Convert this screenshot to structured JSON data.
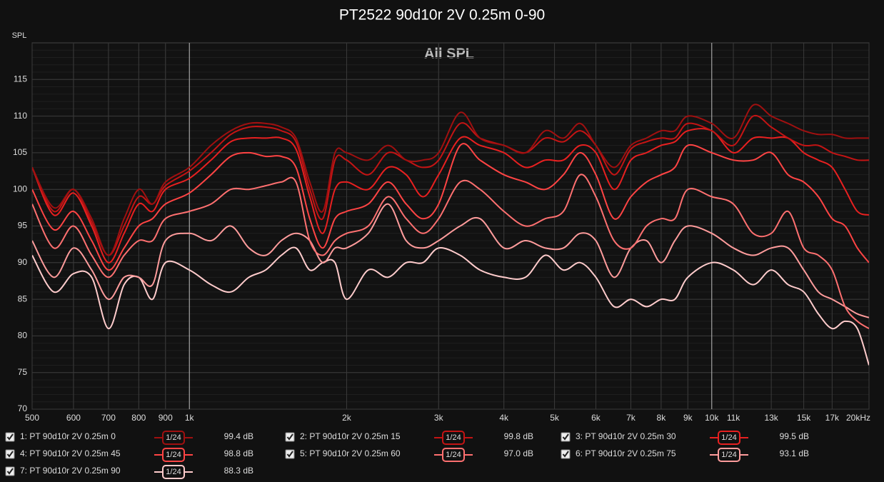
{
  "chart_data": {
    "type": "line",
    "title": "PT2522 90d10r 2V 0.25m 0-90",
    "subtitle": "All SPL",
    "y_label": "SPL",
    "log_x": true,
    "grid": true,
    "xlim": [
      500,
      20000
    ],
    "ylim": [
      70,
      120
    ],
    "xticks": [
      500,
      600,
      700,
      800,
      900,
      {
        "value": 1000,
        "label": "1k"
      },
      {
        "value": 2000,
        "label": "2k"
      },
      {
        "value": 3000,
        "label": "3k"
      },
      {
        "value": 4000,
        "label": "4k"
      },
      {
        "value": 5000,
        "label": "5k"
      },
      {
        "value": 6000,
        "label": "6k"
      },
      {
        "value": 7000,
        "label": "7k"
      },
      {
        "value": 8000,
        "label": "8k"
      },
      {
        "value": 9000,
        "label": "9k"
      },
      {
        "value": 10000,
        "label": "10k"
      },
      {
        "value": 11000,
        "label": "11k"
      },
      {
        "value": 13000,
        "label": "13k"
      },
      {
        "value": 15000,
        "label": "15k"
      },
      {
        "value": 17000,
        "label": "17k"
      },
      {
        "value": 20000,
        "label": "20kHz"
      }
    ],
    "yticks": [
      70,
      75,
      80,
      85,
      90,
      95,
      100,
      105,
      110,
      115
    ],
    "x": [
      500,
      550,
      600,
      650,
      700,
      750,
      800,
      850,
      900,
      1000,
      1100,
      1200,
      1300,
      1400,
      1500,
      1600,
      1700,
      1800,
      1900,
      2000,
      2200,
      2400,
      2600,
      2800,
      3000,
      3300,
      3600,
      4000,
      4400,
      4800,
      5200,
      5600,
      6000,
      6500,
      7000,
      7500,
      8000,
      8500,
      9000,
      10000,
      11000,
      12000,
      13000,
      14000,
      15000,
      16000,
      17000,
      18000,
      19000,
      20000
    ],
    "series": [
      {
        "name": "1: PT 90d10r 2V 0.25m 0",
        "color": "#a01010",
        "smoothing": "1/24",
        "level": "99.4 dB",
        "values": [
          103,
          97.5,
          100,
          96,
          91,
          96,
          100,
          98,
          101,
          103,
          106,
          108,
          109,
          109,
          108.5,
          107,
          101,
          97,
          105,
          105,
          104,
          106,
          104,
          104,
          105,
          110.5,
          107,
          106,
          105,
          108,
          107,
          109,
          106,
          103,
          106,
          107,
          108,
          108,
          110,
          109,
          107,
          111.5,
          110,
          109,
          108,
          107.5,
          107.5,
          107,
          107,
          107
        ]
      },
      {
        "name": "2: PT 90d10r 2V 0.25m 15",
        "color": "#c41414",
        "smoothing": "1/24",
        "level": "99.8 dB",
        "values": [
          103,
          97,
          100,
          95.5,
          91,
          95,
          99,
          98,
          100.5,
          102.5,
          105,
          107.5,
          108.5,
          108.5,
          108,
          106.5,
          100,
          96,
          104,
          104,
          102,
          105,
          104,
          103,
          104,
          109,
          107,
          106,
          105,
          107,
          106.5,
          108,
          106,
          102,
          105.5,
          106.5,
          107,
          107,
          109,
          108,
          106,
          110,
          108.5,
          107,
          106,
          106,
          105,
          104.5,
          104,
          104
        ]
      },
      {
        "name": "3: PT 90d10r 2V 0.25m 30",
        "color": "#e82020",
        "smoothing": "1/24",
        "level": "99.5 dB",
        "values": [
          103,
          96.5,
          99.5,
          95,
          90,
          94,
          98,
          97,
          100,
          101.5,
          104,
          106.5,
          107,
          107,
          107,
          105.5,
          99,
          94,
          100,
          101,
          100,
          103,
          102,
          99,
          102,
          107,
          106,
          105,
          103,
          104,
          104,
          106,
          105,
          100,
          104,
          105,
          106,
          106.5,
          108,
          108,
          105,
          107,
          107,
          107,
          105,
          104,
          103,
          100,
          97,
          96.5
        ]
      },
      {
        "name": "4: PT 90d10r 2V 0.25m 45",
        "color": "#ff4444",
        "smoothing": "1/24",
        "level": "98.8 dB",
        "values": [
          100,
          94.5,
          97,
          93,
          89,
          92,
          95,
          96,
          98,
          99.5,
          102,
          104.5,
          105,
          104.5,
          104.5,
          103,
          96,
          92,
          96,
          97,
          98,
          101,
          98,
          96,
          98,
          106,
          104,
          102,
          101,
          100,
          102,
          105,
          102,
          96,
          99,
          101,
          102,
          103,
          106,
          105,
          104,
          104,
          105,
          102,
          101,
          99,
          96,
          95,
          92,
          90
        ]
      },
      {
        "name": "5: PT 90d10r 2V 0.25m 60",
        "color": "#ff7070",
        "smoothing": "1/24",
        "level": "97.0 dB",
        "values": [
          98,
          92,
          95,
          91,
          88,
          91,
          93,
          93,
          96,
          97,
          98,
          100,
          100,
          100.5,
          101,
          101,
          93,
          91,
          93,
          94,
          95,
          99,
          96,
          94,
          96,
          101,
          100,
          97,
          95,
          96,
          97,
          102,
          99,
          93,
          92,
          95,
          96,
          96,
          100,
          99,
          98,
          94,
          94,
          97,
          92,
          91,
          89,
          84,
          82,
          81
        ]
      },
      {
        "name": "6: PT 90d10r 2V 0.25m 75",
        "color": "#ff9c9c",
        "smoothing": "1/24",
        "level": "93.1 dB",
        "values": [
          93,
          88,
          92,
          89,
          85,
          88,
          88,
          87,
          93,
          94,
          93,
          95,
          92,
          91,
          93,
          94,
          93,
          90,
          92,
          92,
          94,
          98,
          93,
          92,
          93,
          95,
          96,
          92,
          93,
          92,
          92,
          94,
          93,
          88,
          92,
          93,
          90,
          93,
          95,
          94,
          92,
          91,
          92,
          92,
          89,
          86,
          85,
          84,
          83,
          82.5
        ]
      },
      {
        "name": "7: PT 90d10r 2V 0.25m 90",
        "color": "#ffcccc",
        "smoothing": "1/24",
        "level": "88.3 dB",
        "values": [
          91,
          86,
          88.5,
          88,
          81,
          87,
          88,
          85,
          90,
          89,
          87,
          86,
          88,
          89,
          91,
          92,
          89,
          90,
          90,
          85,
          89,
          88,
          90,
          90,
          92,
          91,
          89,
          88,
          88,
          91,
          89,
          90,
          88,
          84,
          85,
          84,
          85,
          85,
          88,
          90,
          89,
          87,
          89,
          87,
          86,
          83,
          81,
          82,
          81,
          76
        ]
      }
    ]
  }
}
